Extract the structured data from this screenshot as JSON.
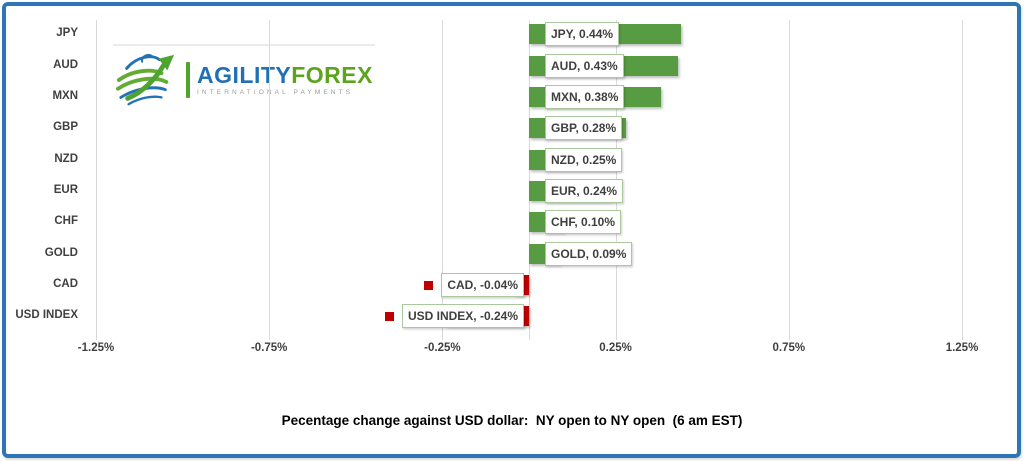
{
  "logo": {
    "name": "AgilityForex",
    "brand_part1": "AGILITY",
    "brand_part2": "FOREX",
    "tagline": "INTERNATIONAL PAYMENTS",
    "colors": {
      "blue": "#2170B5",
      "green": "#5CA41E",
      "divider_green": "#4FA32F",
      "tagline_gray": "#9B9B9B"
    }
  },
  "chart_data": {
    "type": "bar",
    "orientation": "horizontal",
    "title": "Pecentage change against USD dollar:  NY open to NY open  (6 am EST)",
    "categories": [
      "JPY",
      "AUD",
      "MXN",
      "GBP",
      "NZD",
      "EUR",
      "CHF",
      "GOLD",
      "CAD",
      "USD INDEX"
    ],
    "values": [
      0.44,
      0.43,
      0.38,
      0.28,
      0.25,
      0.24,
      0.1,
      0.09,
      -0.04,
      -0.24
    ],
    "data_labels": [
      "JPY, 0.44%",
      "AUD, 0.43%",
      "MXN, 0.38%",
      "GBP, 0.28%",
      "NZD, 0.25%",
      "EUR, 0.24%",
      "CHF, 0.10%",
      "GOLD, 0.09%",
      "CAD, -0.04%",
      "USD INDEX, -0.24%"
    ],
    "x_ticks": [
      {
        "label": "-1.25%",
        "value": -1.25
      },
      {
        "label": "-0.75%",
        "value": -0.75
      },
      {
        "label": "-0.25%",
        "value": -0.25
      },
      {
        "label": "0.25%",
        "value": 0.25
      },
      {
        "label": "0.75%",
        "value": 0.75
      },
      {
        "label": "1.25%",
        "value": 1.25
      }
    ],
    "axis_range": [
      -1.25,
      1.25
    ],
    "gridlines": true,
    "legend": "none",
    "data_label_legend_key_negative": true,
    "colors": {
      "positive_bar": "#579B42",
      "negative_bar": "#C00000",
      "label_box_border": "#A9C89B",
      "label_text": "#3F3F3F",
      "axis_text": "#404040",
      "gridline": "#D9D9D9",
      "frame_border": "#2E75B6",
      "title_text": "#000000"
    }
  }
}
